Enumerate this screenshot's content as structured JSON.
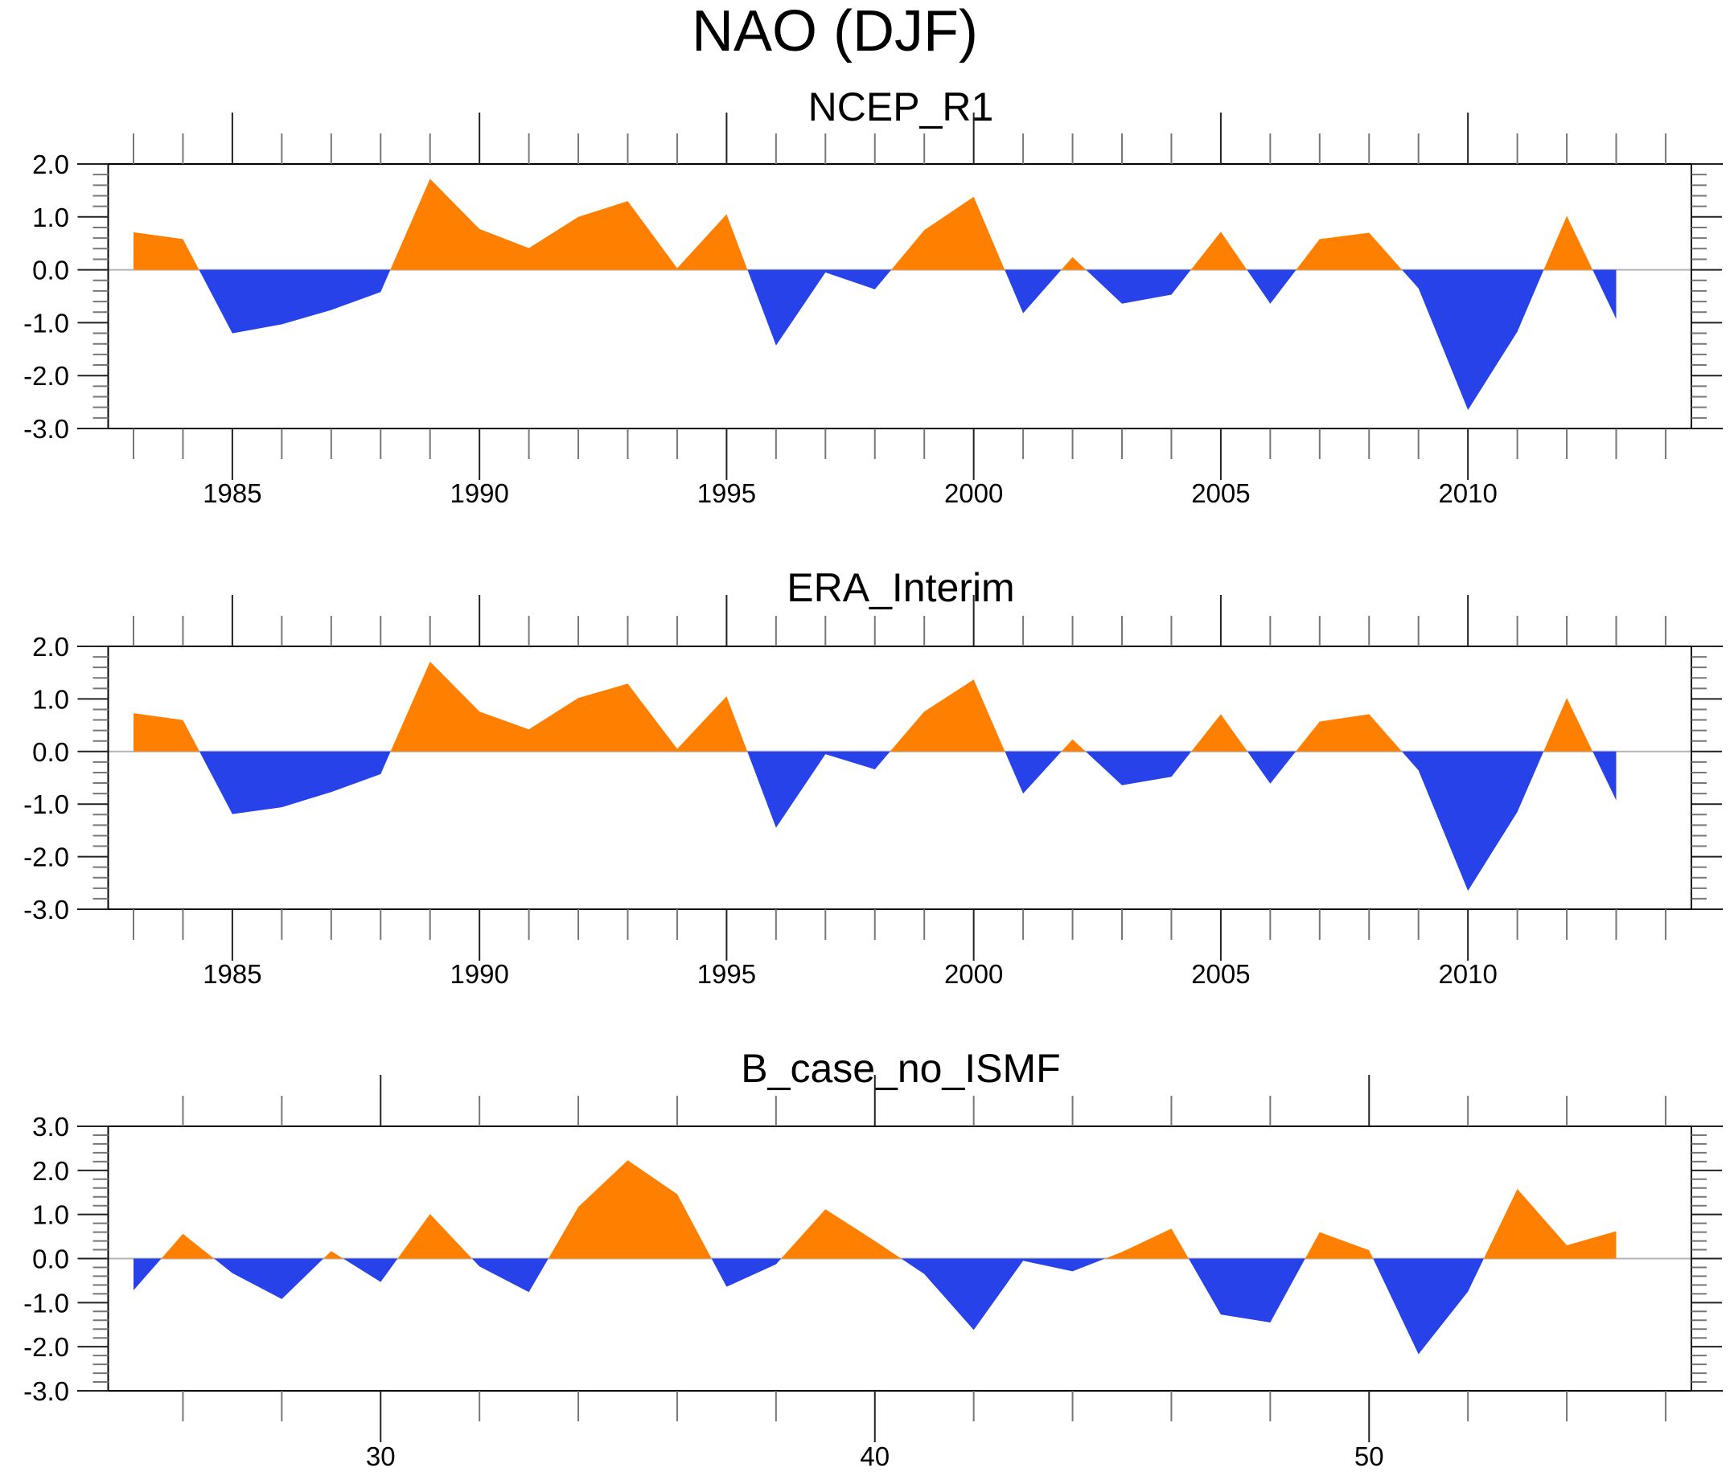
{
  "figure_title": "NAO (DJF)",
  "colors": {
    "positive": "#ff8000",
    "negative": "#2842ea",
    "axis": "#000000",
    "zero_line": "#b4b4b4"
  },
  "chart_data": [
    {
      "type": "area",
      "title": "NCEP_R1",
      "xlabel": "",
      "ylabel": "",
      "x": [
        1983,
        1984,
        1985,
        1986,
        1987,
        1988,
        1989,
        1990,
        1991,
        1992,
        1993,
        1994,
        1995,
        1996,
        1997,
        1998,
        1999,
        2000,
        2001,
        2002,
        2003,
        2004,
        2005,
        2006,
        2007,
        2008,
        2009,
        2010,
        2011,
        2012,
        2013
      ],
      "values": [
        0.71,
        0.58,
        -1.2,
        -1.03,
        -0.76,
        -0.42,
        1.72,
        0.77,
        0.41,
        1.0,
        1.3,
        0.03,
        1.05,
        -1.43,
        -0.05,
        -0.37,
        0.75,
        1.38,
        -0.82,
        0.24,
        -0.64,
        -0.47,
        0.72,
        -0.64,
        0.58,
        0.7,
        -0.35,
        -2.65,
        -1.17,
        1.02,
        -0.93
      ],
      "xlim": [
        1982,
        2014.5
      ],
      "ylim": [
        -3.0,
        2.0
      ],
      "ytick_labels": [
        "2.0",
        "1.0",
        "0.0",
        "-1.0",
        "-2.0",
        "-3.0"
      ],
      "xtick_labels": [
        "1985",
        "1990",
        "1995",
        "2000",
        "2005",
        "2010"
      ],
      "fill_above_zero": "orange",
      "fill_below_zero": "blue"
    },
    {
      "type": "area",
      "title": "ERA_Interim",
      "xlabel": "",
      "ylabel": "",
      "x": [
        1983,
        1984,
        1985,
        1986,
        1987,
        1988,
        1989,
        1990,
        1991,
        1992,
        1993,
        1994,
        1995,
        1996,
        1997,
        1998,
        1999,
        2000,
        2001,
        2002,
        2003,
        2004,
        2005,
        2006,
        2007,
        2008,
        2009,
        2010,
        2011,
        2012,
        2013
      ],
      "values": [
        0.73,
        0.6,
        -1.19,
        -1.06,
        -0.77,
        -0.43,
        1.71,
        0.76,
        0.42,
        1.02,
        1.29,
        0.05,
        1.05,
        -1.45,
        -0.05,
        -0.34,
        0.76,
        1.37,
        -0.8,
        0.23,
        -0.64,
        -0.48,
        0.71,
        -0.61,
        0.57,
        0.71,
        -0.36,
        -2.65,
        -1.15,
        1.02,
        -0.93
      ],
      "xlim": [
        1982,
        2014.5
      ],
      "ylim": [
        -3.0,
        2.0
      ],
      "ytick_labels": [
        "2.0",
        "1.0",
        "0.0",
        "-1.0",
        "-2.0",
        "-3.0"
      ],
      "xtick_labels": [
        "1985",
        "1990",
        "1995",
        "2000",
        "2005",
        "2010"
      ],
      "fill_above_zero": "orange",
      "fill_below_zero": "blue"
    },
    {
      "type": "area",
      "title": "B_case_no_ISMF",
      "xlabel": "",
      "ylabel": "",
      "x": [
        25,
        26,
        27,
        28,
        29,
        30,
        31,
        32,
        33,
        34,
        35,
        36,
        37,
        38,
        39,
        40,
        41,
        42,
        43,
        44,
        45,
        46,
        47,
        48,
        49,
        50,
        51,
        52,
        53,
        54,
        55
      ],
      "values": [
        -0.72,
        0.56,
        -0.33,
        -0.92,
        0.17,
        -0.53,
        1.01,
        -0.18,
        -0.76,
        1.17,
        2.23,
        1.46,
        -0.64,
        -0.13,
        1.12,
        0.4,
        -0.35,
        -1.62,
        -0.05,
        -0.29,
        0.15,
        0.68,
        -1.27,
        -1.45,
        0.6,
        0.19,
        -2.17,
        -0.75,
        1.58,
        0.3,
        0.62
      ],
      "xlim": [
        24,
        56.5
      ],
      "ylim": [
        -3.0,
        3.0
      ],
      "ytick_labels": [
        "3.0",
        "2.0",
        "1.0",
        "0.0",
        "-1.0",
        "-2.0",
        "-3.0"
      ],
      "xtick_labels": [
        "30",
        "40",
        "50"
      ],
      "fill_above_zero": "orange",
      "fill_below_zero": "blue"
    }
  ]
}
